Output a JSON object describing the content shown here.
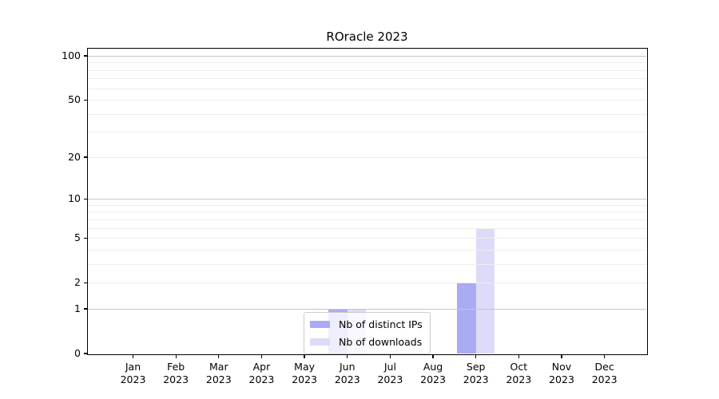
{
  "chart_data": {
    "type": "bar",
    "title": "ROracle 2023",
    "x": {
      "months": [
        "Jan",
        "Feb",
        "Mar",
        "Apr",
        "May",
        "Jun",
        "Jul",
        "Aug",
        "Sep",
        "Oct",
        "Nov",
        "Dec"
      ],
      "year": "2023"
    },
    "series": [
      {
        "name": "Nb of distinct IPs",
        "color": "#ababf3",
        "values": [
          0,
          0,
          0,
          0,
          0,
          1,
          0,
          0,
          2,
          0,
          0,
          0
        ]
      },
      {
        "name": "Nb of downloads",
        "color": "#dcdcf8",
        "values": [
          0,
          0,
          0,
          0,
          0,
          1,
          0,
          0,
          6,
          0,
          0,
          0
        ]
      }
    ],
    "y_axis": {
      "scale": "log1p",
      "ticks": [
        0,
        1,
        2,
        5,
        10,
        20,
        50,
        100
      ],
      "range_top_value": 112
    },
    "grid": {
      "major_values": [
        1,
        10,
        100
      ],
      "minor_values": [
        2,
        3,
        4,
        5,
        6,
        7,
        8,
        9,
        20,
        30,
        40,
        50,
        60,
        70,
        80,
        90
      ],
      "major_color": "#c6c6c6",
      "minor_color": "#ededed"
    },
    "legend": {
      "position": "lower-center"
    },
    "colors": {
      "spine": "#000000",
      "background": "#ffffff"
    }
  }
}
